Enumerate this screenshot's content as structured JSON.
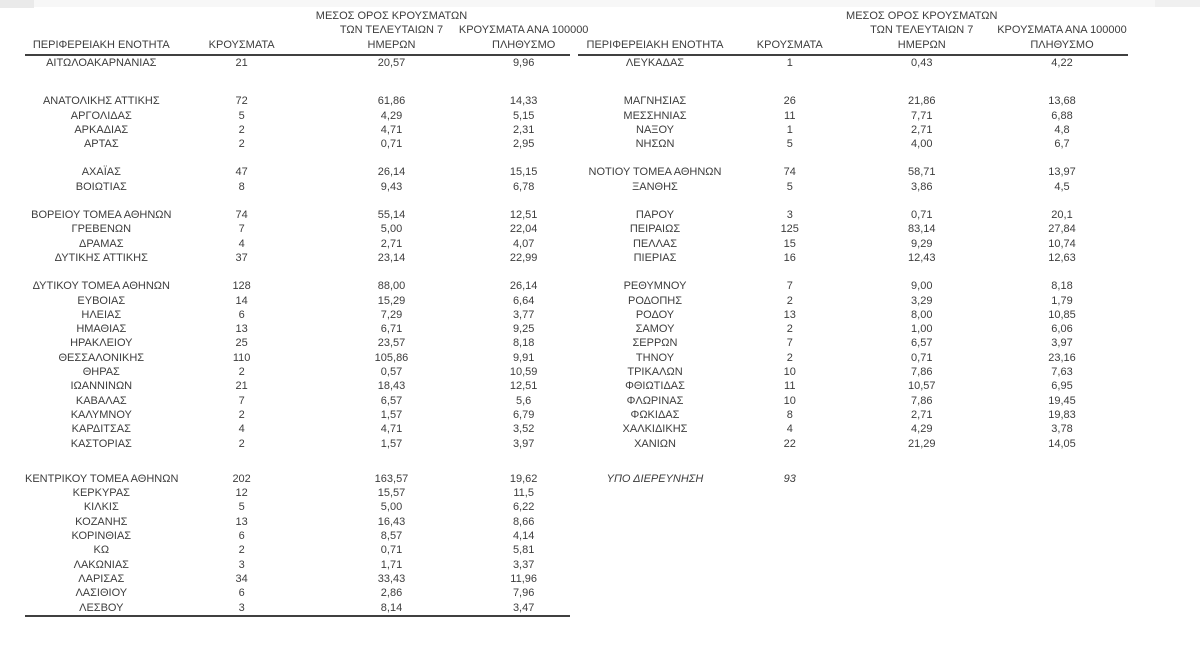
{
  "page": {
    "background": "#ffffff",
    "text_color": "#3d3d3d",
    "rule_color": "#404040"
  },
  "columns": {
    "region": [
      "ΠΕΡΙΦΕΡΕΙΑΚΗ ΕΝΟΤΗΤΑ"
    ],
    "cases": [
      "ΚΡΟΥΣΜΑΤΑ"
    ],
    "avg7": [
      "ΜΕΣΟΣ ΟΡΟΣ ΚΡΟΥΣΜΑΤΩΝ",
      "ΤΩΝ ΤΕΛΕΥΤΑΙΩΝ 7",
      "ΗΜΕΡΩΝ"
    ],
    "per100k": [
      "ΚΡΟΥΣΜΑΤΑ ΑΝΑ 100000",
      "ΠΛΗΘΥΣΜΟ"
    ]
  },
  "tables": [
    {
      "side": "left",
      "rows": [
        {
          "region": "ΑΙΤΩΛΟΑΚΑΡΝΑΝΙΑΣ",
          "cases": "21",
          "avg7": "20,57",
          "per100k": "9,96"
        },
        {
          "gap": "xl"
        },
        {
          "region": "ΑΝΑΤΟΛΙΚΗΣ ΑΤΤΙΚΗΣ",
          "cases": "72",
          "avg7": "61,86",
          "per100k": "14,33"
        },
        {
          "region": "ΑΡΓΟΛΙΔΑΣ",
          "cases": "5",
          "avg7": "4,29",
          "per100k": "5,15"
        },
        {
          "region": "ΑΡΚΑΔΙΑΣ",
          "cases": "2",
          "avg7": "4,71",
          "per100k": "2,31"
        },
        {
          "region": "ΑΡΤΑΣ",
          "cases": "2",
          "avg7": "0,71",
          "per100k": "2,95"
        },
        {
          "gap": "md"
        },
        {
          "region": "ΑΧΑΪΑΣ",
          "cases": "47",
          "avg7": "26,14",
          "per100k": "15,15"
        },
        {
          "region": "ΒΟΙΩΤΙΑΣ",
          "cases": "8",
          "avg7": "9,43",
          "per100k": "6,78"
        },
        {
          "gap": "md"
        },
        {
          "region": "ΒΟΡΕΙΟΥ ΤΟΜΕΑ ΑΘΗΝΩΝ",
          "cases": "74",
          "avg7": "55,14",
          "per100k": "12,51"
        },
        {
          "region": "ΓΡΕΒΕΝΩΝ",
          "cases": "7",
          "avg7": "5,00",
          "per100k": "22,04"
        },
        {
          "region": "ΔΡΑΜΑΣ",
          "cases": "4",
          "avg7": "2,71",
          "per100k": "4,07"
        },
        {
          "region": "ΔΥΤΙΚΗΣ ΑΤΤΙΚΗΣ",
          "cases": "37",
          "avg7": "23,14",
          "per100k": "22,99"
        },
        {
          "gap": "md"
        },
        {
          "region": "ΔΥΤΙΚΟΥ ΤΟΜΕΑ ΑΘΗΝΩΝ",
          "cases": "128",
          "avg7": "88,00",
          "per100k": "26,14"
        },
        {
          "region": "ΕΥΒΟΙΑΣ",
          "cases": "14",
          "avg7": "15,29",
          "per100k": "6,64"
        },
        {
          "region": "ΗΛΕΙΑΣ",
          "cases": "6",
          "avg7": "7,29",
          "per100k": "3,77"
        },
        {
          "region": "ΗΜΑΘΙΑΣ",
          "cases": "13",
          "avg7": "6,71",
          "per100k": "9,25"
        },
        {
          "region": "ΗΡΑΚΛΕΙΟΥ",
          "cases": "25",
          "avg7": "23,57",
          "per100k": "8,18"
        },
        {
          "region": "ΘΕΣΣΑΛΟΝΙΚΗΣ",
          "cases": "110",
          "avg7": "105,86",
          "per100k": "9,91"
        },
        {
          "region": "ΘΗΡΑΣ",
          "cases": "2",
          "avg7": "0,57",
          "per100k": "10,59"
        },
        {
          "region": "ΙΩΑΝΝΙΝΩΝ",
          "cases": "21",
          "avg7": "18,43",
          "per100k": "12,51"
        },
        {
          "region": "ΚΑΒΑΛΑΣ",
          "cases": "7",
          "avg7": "6,57",
          "per100k": "5,6"
        },
        {
          "region": "ΚΑΛΥΜΝΟΥ",
          "cases": "2",
          "avg7": "1,57",
          "per100k": "6,79"
        },
        {
          "region": "ΚΑΡΔΙΤΣΑΣ",
          "cases": "4",
          "avg7": "4,71",
          "per100k": "3,52"
        },
        {
          "region": "ΚΑΣΤΟΡΙΑΣ",
          "cases": "2",
          "avg7": "1,57",
          "per100k": "3,97"
        },
        {
          "gap": "lg"
        },
        {
          "region": "ΚΕΝΤΡΙΚΟΥ ΤΟΜΕΑ ΑΘΗΝΩΝ",
          "cases": "202",
          "avg7": "163,57",
          "per100k": "19,62"
        },
        {
          "region": "ΚΕΡΚΥΡΑΣ",
          "cases": "12",
          "avg7": "15,57",
          "per100k": "11,5"
        },
        {
          "region": "ΚΙΛΚΙΣ",
          "cases": "5",
          "avg7": "5,00",
          "per100k": "6,22"
        },
        {
          "region": "ΚΟΖΑΝΗΣ",
          "cases": "13",
          "avg7": "16,43",
          "per100k": "8,66"
        },
        {
          "region": "ΚΟΡΙΝΘΙΑΣ",
          "cases": "6",
          "avg7": "8,57",
          "per100k": "4,14"
        },
        {
          "region": "ΚΩ",
          "cases": "2",
          "avg7": "0,71",
          "per100k": "5,81"
        },
        {
          "region": "ΛΑΚΩΝΙΑΣ",
          "cases": "3",
          "avg7": "1,71",
          "per100k": "3,37"
        },
        {
          "region": "ΛΑΡΙΣΑΣ",
          "cases": "34",
          "avg7": "33,43",
          "per100k": "11,96"
        },
        {
          "region": "ΛΑΣΙΘΙΟΥ",
          "cases": "6",
          "avg7": "2,86",
          "per100k": "7,96"
        },
        {
          "region": "ΛΕΣΒΟΥ",
          "cases": "3",
          "avg7": "8,14",
          "per100k": "3,47"
        }
      ]
    },
    {
      "side": "right",
      "rows": [
        {
          "region": "ΛΕΥΚΑΔΑΣ",
          "cases": "1",
          "avg7": "0,43",
          "per100k": "4,22"
        },
        {
          "gap": "xl"
        },
        {
          "region": "ΜΑΓΝΗΣΙΑΣ",
          "cases": "26",
          "avg7": "21,86",
          "per100k": "13,68"
        },
        {
          "region": "ΜΕΣΣΗΝΙΑΣ",
          "cases": "11",
          "avg7": "7,71",
          "per100k": "6,88"
        },
        {
          "region": "ΝΑΞΟΥ",
          "cases": "1",
          "avg7": "2,71",
          "per100k": "4,8"
        },
        {
          "region": "ΝΗΣΩΝ",
          "cases": "5",
          "avg7": "4,00",
          "per100k": "6,7"
        },
        {
          "gap": "md"
        },
        {
          "region": "ΝΟΤΙΟΥ ΤΟΜΕΑ ΑΘΗΝΩΝ",
          "cases": "74",
          "avg7": "58,71",
          "per100k": "13,97"
        },
        {
          "region": "ΞΑΝΘΗΣ",
          "cases": "5",
          "avg7": "3,86",
          "per100k": "4,5"
        },
        {
          "gap": "md"
        },
        {
          "region": "ΠΑΡΟΥ",
          "cases": "3",
          "avg7": "0,71",
          "per100k": "20,1"
        },
        {
          "region": "ΠΕΙΡΑΙΩΣ",
          "cases": "125",
          "avg7": "83,14",
          "per100k": "27,84"
        },
        {
          "region": "ΠΕΛΛΑΣ",
          "cases": "15",
          "avg7": "9,29",
          "per100k": "10,74"
        },
        {
          "region": "ΠΙΕΡΙΑΣ",
          "cases": "16",
          "avg7": "12,43",
          "per100k": "12,63"
        },
        {
          "gap": "md"
        },
        {
          "region": "ΡΕΘΥΜΝΟΥ",
          "cases": "7",
          "avg7": "9,00",
          "per100k": "8,18"
        },
        {
          "region": "ΡΟΔΟΠΗΣ",
          "cases": "2",
          "avg7": "3,29",
          "per100k": "1,79"
        },
        {
          "region": "ΡΟΔΟΥ",
          "cases": "13",
          "avg7": "8,00",
          "per100k": "10,85"
        },
        {
          "region": "ΣΑΜΟΥ",
          "cases": "2",
          "avg7": "1,00",
          "per100k": "6,06"
        },
        {
          "region": "ΣΕΡΡΩΝ",
          "cases": "7",
          "avg7": "6,57",
          "per100k": "3,97"
        },
        {
          "region": "ΤΗΝΟΥ",
          "cases": "2",
          "avg7": "0,71",
          "per100k": "23,16"
        },
        {
          "region": "ΤΡΙΚΑΛΩΝ",
          "cases": "10",
          "avg7": "7,86",
          "per100k": "7,63"
        },
        {
          "region": "ΦΘΙΩΤΙΔΑΣ",
          "cases": "11",
          "avg7": "10,57",
          "per100k": "6,95"
        },
        {
          "region": "ΦΛΩΡΙΝΑΣ",
          "cases": "10",
          "avg7": "7,86",
          "per100k": "19,45"
        },
        {
          "region": "ΦΩΚΙΔΑΣ",
          "cases": "8",
          "avg7": "2,71",
          "per100k": "19,83"
        },
        {
          "region": "ΧΑΛΚΙΔΙΚΗΣ",
          "cases": "4",
          "avg7": "4,29",
          "per100k": "3,78"
        },
        {
          "region": "ΧΑΝΙΩΝ",
          "cases": "22",
          "avg7": "21,29",
          "per100k": "14,05"
        },
        {
          "gap": "lg"
        },
        {
          "region": "ΥΠΟ ΔΙΕΡΕΥΝΗΣΗ",
          "cases": "93",
          "avg7": "",
          "per100k": "",
          "italic": true
        }
      ]
    }
  ]
}
